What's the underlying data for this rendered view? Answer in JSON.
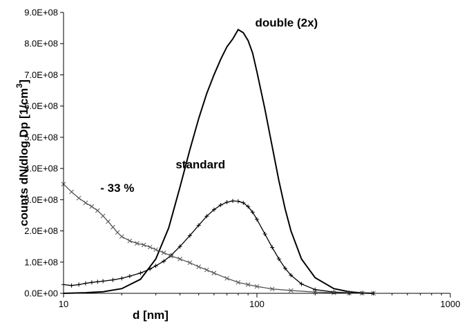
{
  "chart_data": {
    "type": "line",
    "title": "",
    "xlabel": "d [nm]",
    "ylabel": "counts dN/dlog Dp [1/cm",
    "ylabel_superscript": "3",
    "ylabel_close": "]",
    "x_scale": "log",
    "xlim": [
      10,
      1000
    ],
    "ylim": [
      0,
      900000000
    ],
    "x_ticks": [
      10,
      100,
      1000
    ],
    "x_tick_labels": [
      "10",
      "100",
      "1000"
    ],
    "y_ticks": [
      0,
      100000000,
      200000000,
      300000000,
      400000000,
      500000000,
      600000000,
      700000000,
      800000000,
      900000000
    ],
    "y_tick_labels": [
      "0.0E+00",
      "1.0E+08",
      "2.0E+08",
      "3.0E+08",
      "4.0E+08",
      "5.0E+08",
      "6.0E+08",
      "7.0E+08",
      "8.0E+08",
      "9.0E+08"
    ],
    "grid": false,
    "legend": "none",
    "annotations": [
      {
        "text": "double (2x)",
        "x": 98,
        "y": 855000000
      },
      {
        "text": "standard",
        "x": 38,
        "y": 400000000
      },
      {
        "text": "- 33 %",
        "x": 15.5,
        "y": 325000000
      }
    ],
    "series": [
      {
        "label": "double (2x)",
        "marker": "none",
        "color": "#000000",
        "x": [
          10,
          13,
          16,
          20,
          25,
          30,
          35,
          40,
          45,
          50,
          55,
          60,
          65,
          70,
          75,
          80,
          85,
          90,
          95,
          100,
          110,
          120,
          130,
          140,
          150,
          170,
          200,
          250,
          300,
          350,
          400
        ],
        "y": [
          0,
          2000000,
          5000000,
          15000000,
          45000000,
          110000000,
          210000000,
          340000000,
          460000000,
          560000000,
          640000000,
          700000000,
          750000000,
          790000000,
          815000000,
          845000000,
          835000000,
          810000000,
          770000000,
          710000000,
          590000000,
          470000000,
          360000000,
          270000000,
          200000000,
          110000000,
          50000000,
          15000000,
          5000000,
          1000000,
          0
        ]
      },
      {
        "label": "standard",
        "marker": "plus",
        "color": "#000000",
        "x": [
          10,
          11,
          12,
          13,
          14,
          15,
          16,
          18,
          20,
          22,
          25,
          28,
          30,
          33,
          36,
          40,
          45,
          50,
          55,
          60,
          65,
          70,
          75,
          80,
          85,
          90,
          95,
          100,
          110,
          120,
          130,
          140,
          150,
          170,
          200,
          250,
          300,
          350,
          400
        ],
        "y": [
          28000000,
          25000000,
          28000000,
          32000000,
          35000000,
          37000000,
          39000000,
          43000000,
          48000000,
          55000000,
          65000000,
          78000000,
          88000000,
          103000000,
          122000000,
          150000000,
          185000000,
          218000000,
          247000000,
          268000000,
          283000000,
          292000000,
          296000000,
          295000000,
          290000000,
          278000000,
          260000000,
          237000000,
          190000000,
          147000000,
          110000000,
          80000000,
          58000000,
          30000000,
          12000000,
          4000000,
          2000000,
          1000000,
          0
        ]
      },
      {
        "label": "- 33 %",
        "marker": "x",
        "color": "#555555",
        "x": [
          10,
          11,
          12,
          13,
          14,
          15,
          16,
          17,
          18,
          19,
          20,
          22,
          24,
          26,
          28,
          30,
          33,
          36,
          40,
          45,
          50,
          55,
          60,
          70,
          80,
          90,
          100,
          120,
          150,
          200,
          250,
          300,
          350,
          400
        ],
        "y": [
          350000000,
          325000000,
          305000000,
          290000000,
          278000000,
          265000000,
          248000000,
          230000000,
          212000000,
          195000000,
          182000000,
          168000000,
          160000000,
          155000000,
          148000000,
          140000000,
          130000000,
          120000000,
          110000000,
          98000000,
          85000000,
          75000000,
          65000000,
          48000000,
          35000000,
          28000000,
          22000000,
          14000000,
          9000000,
          4000000,
          2000000,
          1000000,
          500000,
          0
        ]
      }
    ]
  }
}
